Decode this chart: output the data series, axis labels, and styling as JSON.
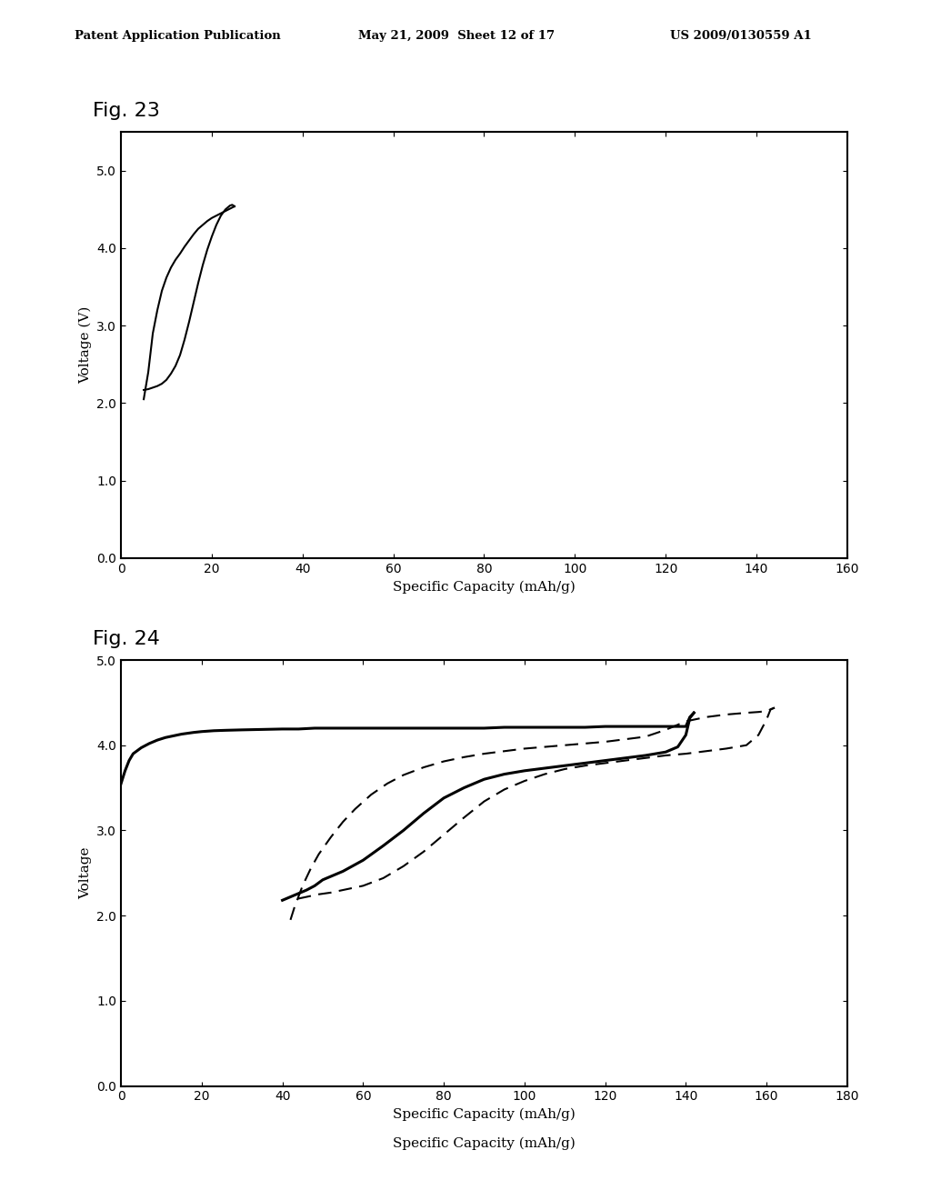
{
  "fig23_label": "Fig. 23",
  "fig24_label": "Fig. 24",
  "header_left": "Patent Application Publication",
  "header_center": "May 21, 2009  Sheet 12 of 17",
  "header_right": "US 2009/0130559 A1",
  "fig23": {
    "xlabel": "Specific Capacity (mAh/g)",
    "ylabel": "Voltage (V)",
    "xlim": [
      0,
      160
    ],
    "ylim": [
      0.0,
      5.5
    ],
    "yticks": [
      0.0,
      1.0,
      2.0,
      3.0,
      4.0,
      5.0
    ],
    "xticks": [
      0,
      20,
      40,
      60,
      80,
      100,
      120,
      140,
      160
    ],
    "charge_x": [
      5,
      6,
      7,
      8,
      9,
      10,
      11,
      12,
      13,
      14,
      15,
      16,
      17,
      18,
      19,
      20,
      21,
      22,
      23,
      24,
      25
    ],
    "charge_y": [
      2.05,
      2.4,
      2.9,
      3.2,
      3.45,
      3.62,
      3.75,
      3.85,
      3.93,
      4.02,
      4.1,
      4.18,
      4.25,
      4.3,
      4.35,
      4.39,
      4.42,
      4.45,
      4.48,
      4.51,
      4.54
    ],
    "discharge_x": [
      25,
      24.5,
      24,
      23,
      22,
      21,
      20,
      19,
      18,
      17,
      16,
      15,
      14,
      13,
      12,
      11,
      10,
      9,
      8,
      7,
      6,
      5
    ],
    "discharge_y": [
      4.54,
      4.56,
      4.55,
      4.5,
      4.42,
      4.3,
      4.15,
      3.98,
      3.78,
      3.55,
      3.3,
      3.05,
      2.82,
      2.62,
      2.48,
      2.38,
      2.3,
      2.25,
      2.22,
      2.2,
      2.18,
      2.17
    ]
  },
  "fig24": {
    "xlabel": "Specific Capacity (mAh/g)",
    "ylabel": "Voltage",
    "xlim": [
      0,
      180
    ],
    "ylim": [
      0.0,
      5.0
    ],
    "yticks": [
      0.0,
      1.0,
      2.0,
      3.0,
      4.0,
      5.0
    ],
    "xticks": [
      0,
      20,
      40,
      60,
      80,
      100,
      120,
      140,
      160,
      180
    ],
    "solid_charge_x": [
      0,
      1,
      2,
      3,
      5,
      7,
      9,
      11,
      13,
      15,
      18,
      20,
      23,
      26,
      30,
      35,
      40,
      42,
      44,
      46,
      48,
      50,
      55,
      60,
      65,
      70,
      75,
      80,
      85,
      90,
      95,
      100,
      105,
      110,
      115,
      120,
      125,
      130,
      135,
      140,
      141,
      142
    ],
    "solid_charge_y": [
      3.55,
      3.7,
      3.82,
      3.9,
      3.97,
      4.02,
      4.06,
      4.09,
      4.11,
      4.13,
      4.15,
      4.16,
      4.17,
      4.175,
      4.18,
      4.185,
      4.19,
      4.19,
      4.19,
      4.195,
      4.2,
      4.2,
      4.2,
      4.2,
      4.2,
      4.2,
      4.2,
      4.2,
      4.2,
      4.2,
      4.21,
      4.21,
      4.21,
      4.21,
      4.21,
      4.22,
      4.22,
      4.22,
      4.22,
      4.22,
      4.33,
      4.38
    ],
    "solid_discharge_x": [
      142,
      141,
      140,
      138,
      135,
      130,
      125,
      120,
      115,
      110,
      105,
      100,
      95,
      90,
      85,
      80,
      75,
      70,
      65,
      60,
      55,
      50,
      48,
      46,
      44,
      42,
      40
    ],
    "solid_discharge_y": [
      4.38,
      4.32,
      4.12,
      3.98,
      3.92,
      3.88,
      3.85,
      3.82,
      3.79,
      3.76,
      3.73,
      3.7,
      3.66,
      3.6,
      3.5,
      3.38,
      3.2,
      3.0,
      2.82,
      2.65,
      2.52,
      2.42,
      2.35,
      2.3,
      2.26,
      2.22,
      2.18
    ],
    "dash_charge_x": [
      42,
      43,
      45,
      47,
      49,
      52,
      55,
      58,
      62,
      66,
      70,
      75,
      80,
      85,
      90,
      95,
      100,
      105,
      110,
      115,
      120,
      125,
      130,
      135,
      140,
      145,
      150,
      155,
      158,
      160,
      161,
      162
    ],
    "dash_charge_y": [
      1.95,
      2.1,
      2.35,
      2.55,
      2.72,
      2.92,
      3.1,
      3.25,
      3.42,
      3.55,
      3.65,
      3.74,
      3.81,
      3.86,
      3.9,
      3.93,
      3.96,
      3.98,
      4.0,
      4.02,
      4.04,
      4.07,
      4.1,
      4.18,
      4.28,
      4.33,
      4.36,
      4.38,
      4.39,
      4.4,
      4.42,
      4.44
    ],
    "dash_discharge_x": [
      162,
      161,
      160,
      158,
      155,
      150,
      145,
      140,
      135,
      130,
      125,
      120,
      115,
      110,
      105,
      100,
      95,
      90,
      85,
      80,
      75,
      70,
      65,
      60,
      55,
      52,
      49,
      47,
      45,
      43,
      42
    ],
    "dash_discharge_y": [
      4.44,
      4.42,
      4.3,
      4.12,
      4.0,
      3.96,
      3.93,
      3.9,
      3.88,
      3.85,
      3.82,
      3.79,
      3.76,
      3.72,
      3.66,
      3.58,
      3.48,
      3.34,
      3.15,
      2.95,
      2.75,
      2.58,
      2.44,
      2.35,
      2.3,
      2.27,
      2.25,
      2.23,
      2.21,
      2.19,
      2.18
    ]
  },
  "bg_color": "#ffffff",
  "line_color": "#000000"
}
